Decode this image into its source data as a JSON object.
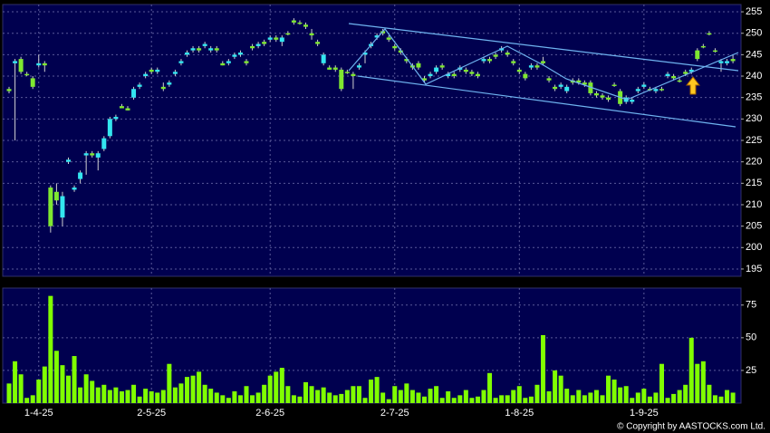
{
  "chart_data": [
    {
      "type": "candlestick",
      "up_color": "#33e6f0",
      "down_color": "#7fe830",
      "wick_color": "#d0d0d0",
      "grid": true,
      "ylim": [
        193.3,
        256.7
      ],
      "yticks": [
        195,
        200,
        205,
        210,
        215,
        220,
        225,
        230,
        235,
        240,
        245,
        250,
        255
      ],
      "open": [
        237,
        243,
        244,
        240.5,
        239.5,
        242.5,
        243,
        214,
        213,
        207,
        220,
        213.5,
        216,
        221.5,
        222,
        221,
        223,
        226,
        230,
        233,
        232.5,
        235,
        237.5,
        240,
        241.5,
        241,
        237.5,
        238,
        240.5,
        243,
        245,
        246,
        246.5,
        247,
        246,
        246.5,
        243,
        243,
        244.5,
        245,
        243.5,
        247,
        247,
        248,
        248.5,
        249,
        248,
        250,
        253,
        252.5,
        252,
        250,
        248,
        243,
        242,
        242,
        241.5,
        241,
        240.5,
        242,
        245,
        247,
        249,
        250.5,
        249,
        247,
        246,
        244,
        242.5,
        243,
        239.5,
        240,
        241,
        242.5,
        240,
        240.5,
        241.5,
        241.5,
        241,
        240.5,
        243.5,
        244,
        245,
        246,
        245.5,
        243.5,
        241.5,
        240.5,
        242,
        242.5,
        243.5,
        239.5,
        237.5,
        237.5,
        236.5,
        239,
        239,
        238.5,
        238.5,
        236,
        235.5,
        235,
        238,
        236.5,
        234,
        234,
        236.5,
        237.5,
        237,
        236.5,
        237,
        240,
        240,
        239,
        241,
        241,
        246,
        247,
        250,
        246,
        243,
        243,
        244
      ],
      "high": [
        237.5,
        244,
        244.5,
        241,
        240,
        245,
        243.5,
        214.5,
        215,
        213,
        221,
        214.5,
        218,
        222.5,
        222.5,
        222.5,
        226,
        230.5,
        231,
        233.5,
        233,
        237.5,
        238.5,
        241,
        242,
        242,
        238.5,
        239,
        241.5,
        244,
        246,
        247,
        247,
        248,
        247,
        247,
        243.5,
        244,
        245.5,
        246,
        244,
        247.5,
        248,
        248.5,
        249.5,
        249.5,
        249.5,
        250.5,
        253.5,
        253,
        252.5,
        251,
        248.5,
        245.5,
        242.5,
        242.5,
        242,
        241.5,
        241,
        243,
        246,
        248,
        250,
        251,
        249.5,
        247.5,
        246.5,
        244.5,
        243,
        243.5,
        240,
        241,
        242.5,
        243,
        241,
        241,
        242.5,
        242,
        241.5,
        241,
        244.5,
        244.5,
        245.5,
        247,
        246,
        244,
        242,
        241,
        243,
        243,
        244.5,
        240,
        238,
        238.5,
        238,
        239.5,
        239.5,
        239,
        239,
        236.5,
        236,
        235.5,
        238.5,
        237,
        235.5,
        235,
        237.5,
        238.5,
        237.5,
        237.5,
        237.5,
        241,
        240.5,
        239.5,
        241.5,
        242,
        246.5,
        247.5,
        250.5,
        246.5,
        244,
        244,
        245
      ],
      "low": [
        236,
        225,
        240.5,
        240,
        237,
        242,
        241,
        203.5,
        210,
        205,
        219.5,
        213,
        215,
        217,
        221,
        218,
        222.5,
        225.5,
        229.5,
        232.5,
        232,
        234.5,
        237,
        239.5,
        240.5,
        240.5,
        236.5,
        237.5,
        240,
        242.5,
        244.5,
        245.5,
        245.5,
        246.5,
        245.5,
        245.5,
        242.5,
        242.5,
        244,
        244.5,
        242.5,
        246,
        246.5,
        247,
        248,
        248,
        247,
        249.5,
        252,
        252,
        251,
        248.5,
        247,
        242.5,
        241.5,
        241,
        236.5,
        240.5,
        237,
        241.5,
        243,
        246.5,
        248.5,
        249.5,
        248,
        246,
        245,
        243,
        241.5,
        241.5,
        238.5,
        239.5,
        240.5,
        241.5,
        239.5,
        239.5,
        241,
        240.5,
        240,
        239.5,
        243,
        243,
        244,
        245.5,
        244.5,
        242.5,
        240.5,
        239,
        241.5,
        241.5,
        242.5,
        238.5,
        236.5,
        237,
        236,
        238,
        238,
        237.5,
        235.5,
        235,
        234.5,
        234,
        237.5,
        233,
        233.5,
        233.5,
        236,
        237,
        236.5,
        236,
        236.5,
        239.5,
        239,
        238.5,
        240,
        240.5,
        243.5,
        246.5,
        249.5,
        245.5,
        241,
        242.5,
        243
      ],
      "close": [
        236.5,
        243.5,
        241,
        240.5,
        237.5,
        243,
        242.5,
        205,
        211,
        212,
        220.5,
        214,
        217.5,
        222,
        221.5,
        222,
        225.5,
        230,
        230.5,
        232.5,
        232,
        237,
        238,
        240.5,
        241,
        241.5,
        237,
        238.5,
        241,
        243.5,
        245.5,
        246.5,
        246,
        247.5,
        246.5,
        246,
        242.5,
        243.5,
        245,
        245.5,
        243,
        246.5,
        247.5,
        247.5,
        249,
        248.5,
        249,
        250,
        252.5,
        252.5,
        251.5,
        249.5,
        247.5,
        245,
        241.5,
        241.5,
        237,
        241,
        240,
        242.5,
        245.5,
        247.5,
        249.5,
        250,
        248.5,
        246.5,
        245.5,
        243.5,
        242,
        242,
        239,
        240.5,
        242,
        242,
        240.5,
        240,
        242,
        241,
        240.5,
        240,
        244,
        243.5,
        244.5,
        246.5,
        245,
        243,
        241,
        239.5,
        242.5,
        242,
        243,
        239,
        237,
        238,
        237.5,
        238.5,
        238.5,
        238,
        236,
        235.5,
        235,
        234.5,
        238,
        233.5,
        235,
        234.5,
        237,
        238,
        237,
        237,
        237,
        240.5,
        239.5,
        239,
        240.5,
        241.5,
        244,
        247,
        250,
        246,
        243.5,
        243.5,
        243.5
      ]
    },
    {
      "type": "bar",
      "color": "#80ff00",
      "grid": true,
      "ylim": [
        0,
        88
      ],
      "yticks": [
        25,
        50,
        75
      ],
      "categories": [
        null,
        null,
        null,
        null,
        null,
        "1-4-25",
        null,
        null,
        null,
        null,
        null,
        null,
        null,
        null,
        null,
        null,
        null,
        null,
        null,
        null,
        null,
        null,
        null,
        null,
        "2-5-25",
        null,
        null,
        null,
        null,
        null,
        null,
        null,
        null,
        null,
        null,
        null,
        null,
        null,
        null,
        null,
        null,
        null,
        null,
        null,
        "2-6-25",
        null,
        null,
        null,
        null,
        null,
        null,
        null,
        null,
        null,
        null,
        null,
        null,
        null,
        null,
        null,
        null,
        null,
        null,
        null,
        null,
        "2-7-25",
        null,
        null,
        null,
        null,
        null,
        null,
        null,
        null,
        null,
        null,
        null,
        null,
        null,
        null,
        null,
        null,
        null,
        null,
        null,
        null,
        "1-8-25",
        null,
        null,
        null,
        null,
        null,
        null,
        null,
        null,
        null,
        null,
        null,
        null,
        null,
        null,
        null,
        null,
        null,
        null,
        null,
        null,
        "1-9-25",
        null,
        null,
        null,
        null,
        null,
        null,
        null,
        null,
        null,
        null,
        null,
        null,
        null,
        null,
        null
      ],
      "values": [
        15,
        32,
        22,
        4,
        6,
        18,
        28,
        82,
        40,
        29,
        21,
        36,
        12,
        22,
        17,
        12,
        14,
        10,
        12,
        9,
        10,
        14,
        5,
        11,
        9,
        8,
        10,
        30,
        12,
        15,
        20,
        21,
        24,
        14,
        11,
        8,
        6,
        4,
        9,
        6,
        13,
        6,
        8,
        14,
        21,
        24,
        27,
        13,
        6,
        5,
        16,
        13,
        10,
        12,
        8,
        6,
        7,
        10,
        13,
        13,
        4,
        18,
        20,
        8,
        3,
        13,
        10,
        15,
        10,
        8,
        5,
        11,
        13,
        4,
        9,
        4,
        6,
        10,
        4,
        5,
        10,
        23,
        4,
        6,
        6,
        10,
        13,
        4,
        5,
        14,
        52,
        9,
        25,
        21,
        11,
        6,
        10,
        6,
        8,
        10,
        6,
        21,
        18,
        12,
        13,
        4,
        8,
        11,
        5,
        8,
        30,
        4,
        7,
        10,
        14,
        50,
        30,
        32,
        14,
        6,
        5,
        10,
        8
      ]
    }
  ],
  "footer": {
    "copyright": "© Copyright by AASTOCKS.com Ltd."
  }
}
